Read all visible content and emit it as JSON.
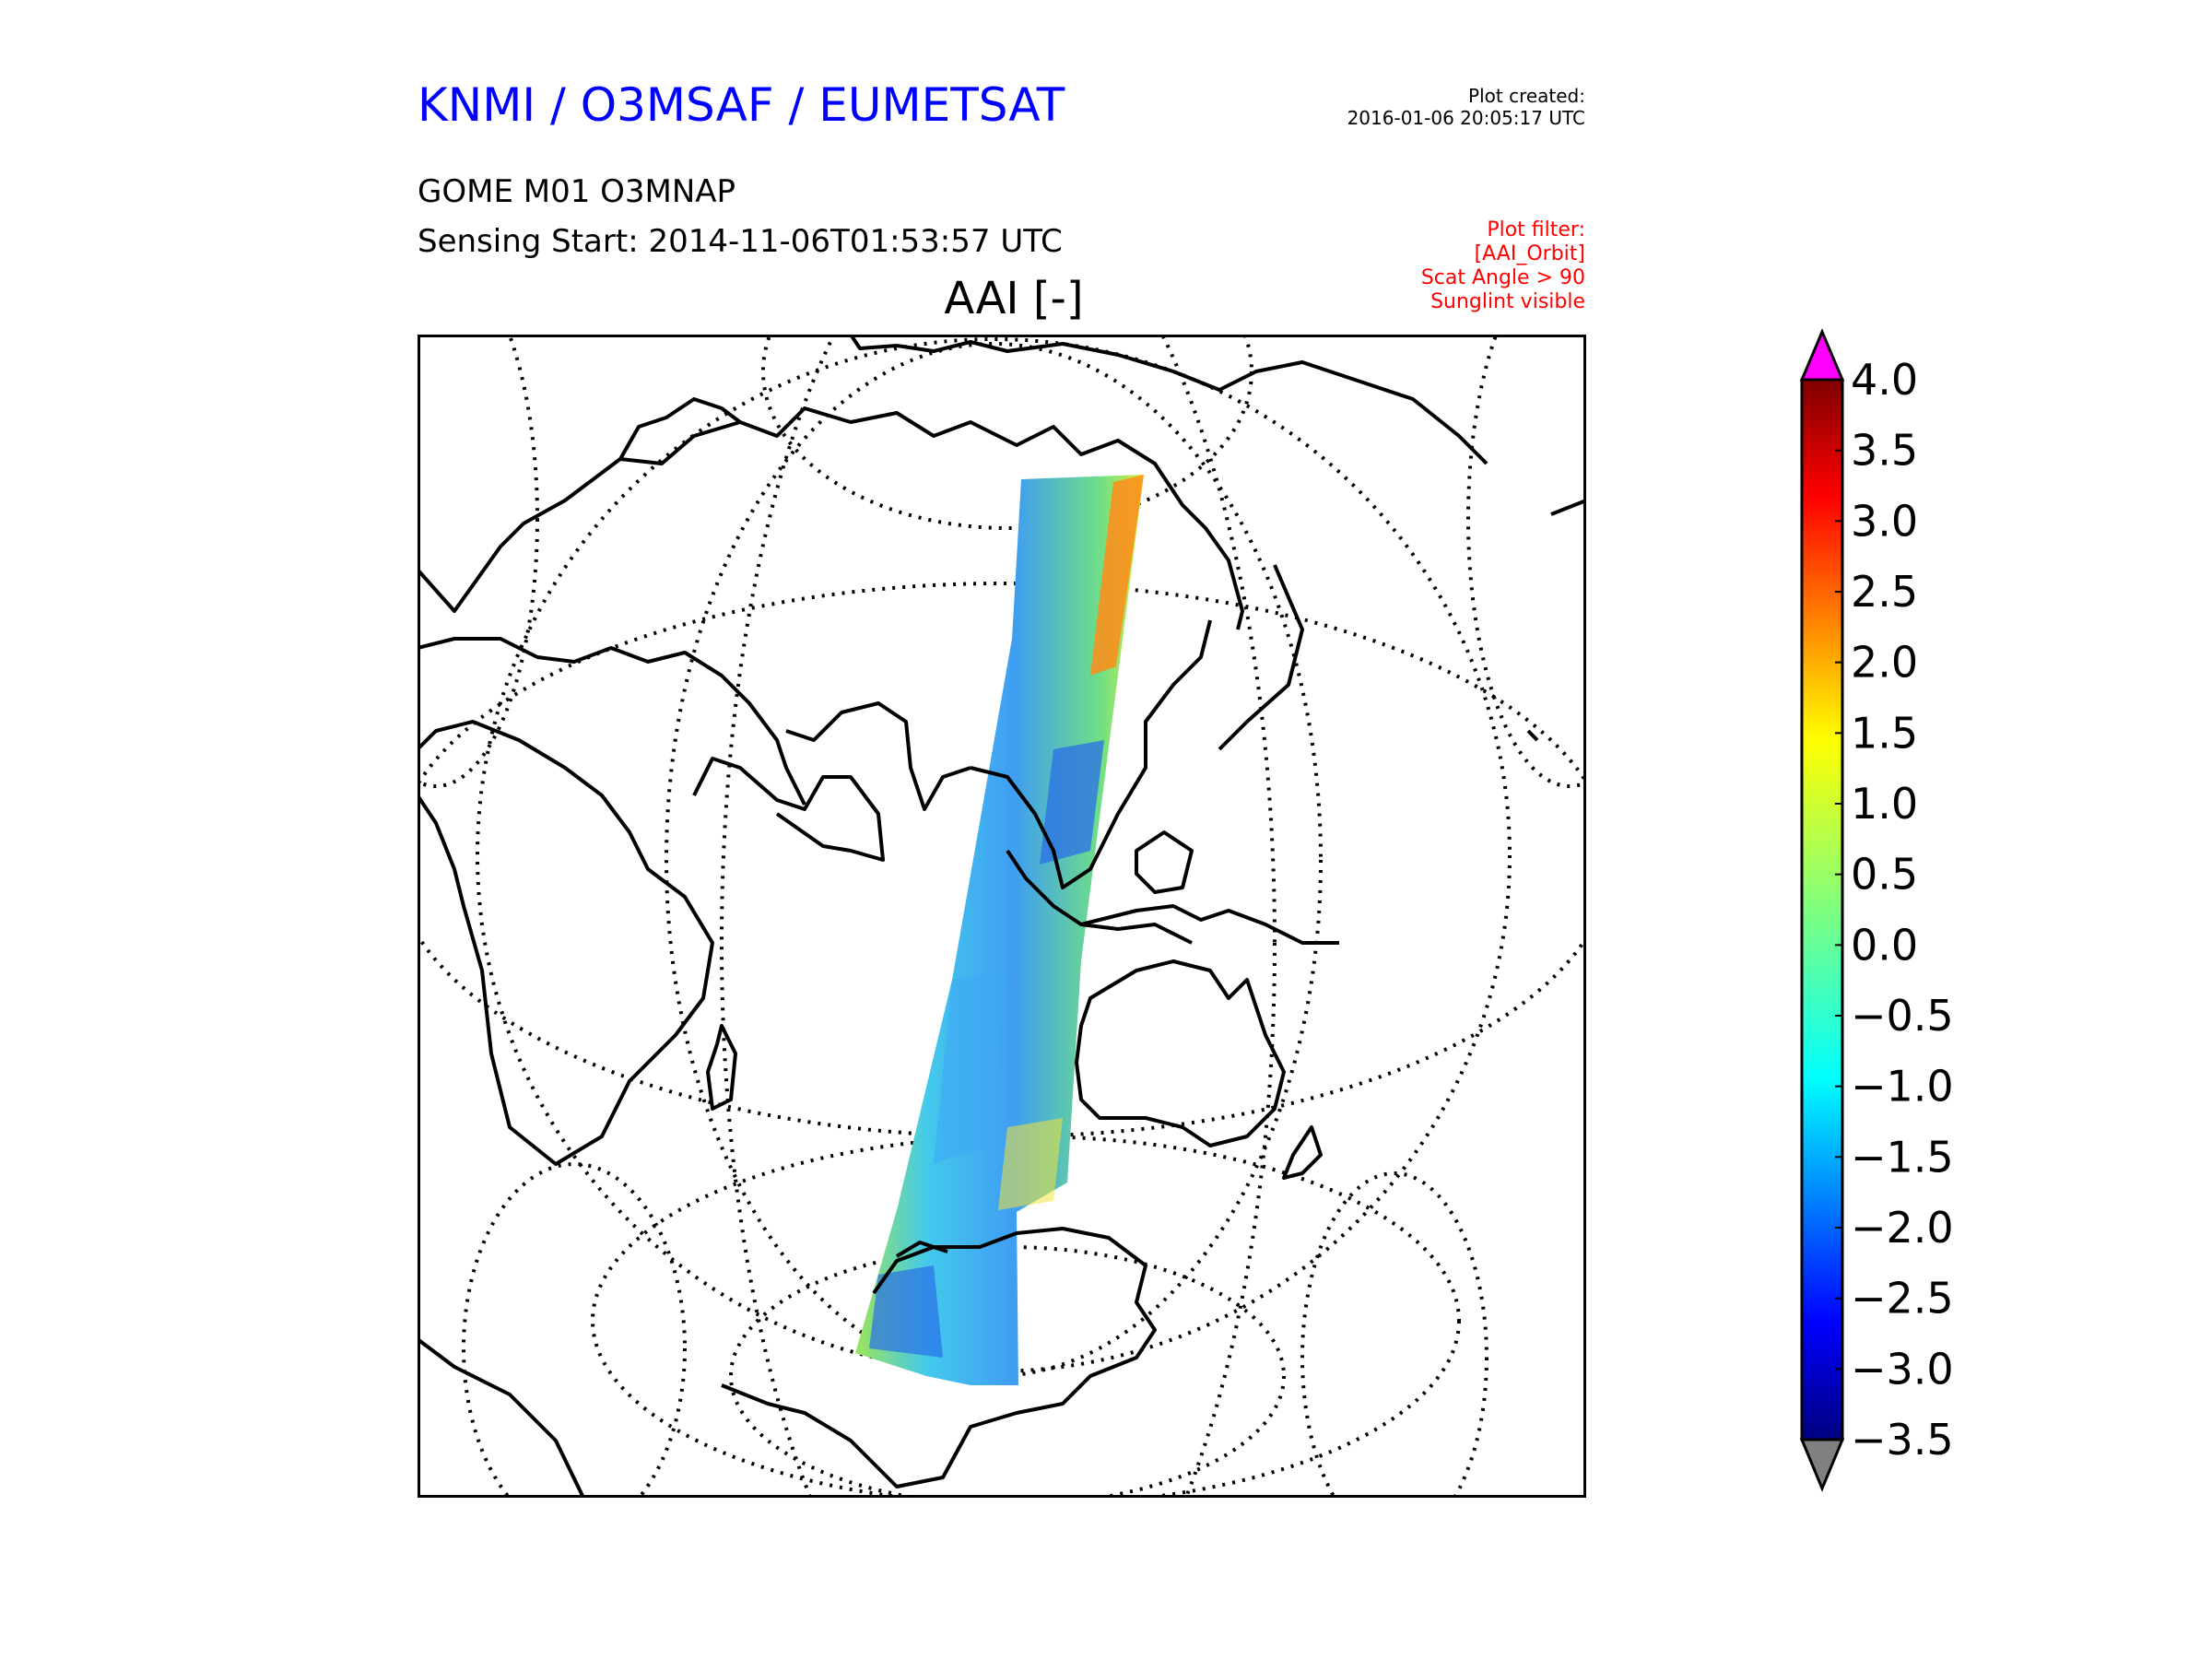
{
  "header": {
    "organization": "KNMI / O3MSAF / EUMETSAT",
    "plot_created_label": "Plot created:",
    "plot_created_value": "2016-01-06 20:05:17 UTC",
    "product": "GOME M01 O3MNAP",
    "sensing_start": "Sensing Start: 2014-11-06T01:53:57 UTC",
    "filters": [
      "Plot filter:",
      "[AAI_Orbit]",
      "Scat Angle > 90",
      "Sunglint visible"
    ],
    "parameter": "AAI [-]"
  },
  "colorbar": {
    "min": -3.5,
    "max": 4.0,
    "ticks": [
      "4.0",
      "3.5",
      "3.0",
      "2.5",
      "2.0",
      "1.5",
      "1.0",
      "0.5",
      "0.0",
      "−0.5",
      "−1.0",
      "−1.5",
      "−2.0",
      "−2.5",
      "−3.0",
      "−3.5"
    ],
    "over_color": "#ff00ff",
    "under_color": "#808080",
    "colormap": [
      "#00007f",
      "#0000ff",
      "#007fff",
      "#00ffff",
      "#7fff7f",
      "#ffff00",
      "#ff7f00",
      "#ff0000",
      "#7f0000"
    ]
  },
  "map": {
    "projection": "orthographic (centered on the equator, ~100°E)",
    "swath_colors": [
      "#2a6fe8",
      "#3fa8f5",
      "#43d3e6",
      "#7ae67a",
      "#c9ee3a",
      "#f3e53a",
      "#ff8c1a"
    ]
  }
}
